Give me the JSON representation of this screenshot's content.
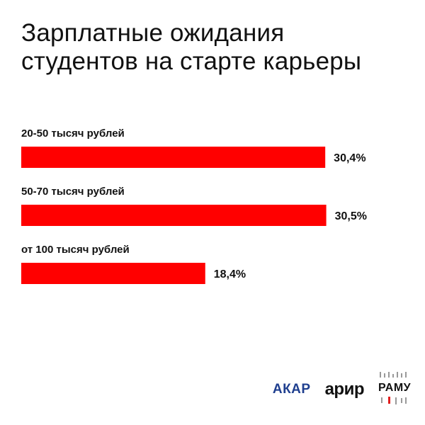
{
  "title": "Зарплатные ожидания студентов на старте карьеры",
  "chart_data": {
    "type": "bar",
    "orientation": "horizontal",
    "title": "Зарплатные ожидания студентов на старте карьеры",
    "categories": [
      "20-50 тысяч рублей",
      "50-70 тысяч рублей",
      "от 100 тысяч рублей"
    ],
    "values": [
      30.4,
      30.5,
      18.4
    ],
    "value_labels": [
      "30,4%",
      "30,5%",
      "18,4%"
    ],
    "unit": "%",
    "xlim": [
      0,
      34
    ],
    "grid": false,
    "bar_color": "#ff0000"
  },
  "logos": {
    "akar": "АКАР",
    "arir": "арир",
    "ramu": "РАМУ"
  },
  "colors": {
    "bar": "#ff0000",
    "akar": "#1f3f8f",
    "accent": "#e11d1d"
  }
}
